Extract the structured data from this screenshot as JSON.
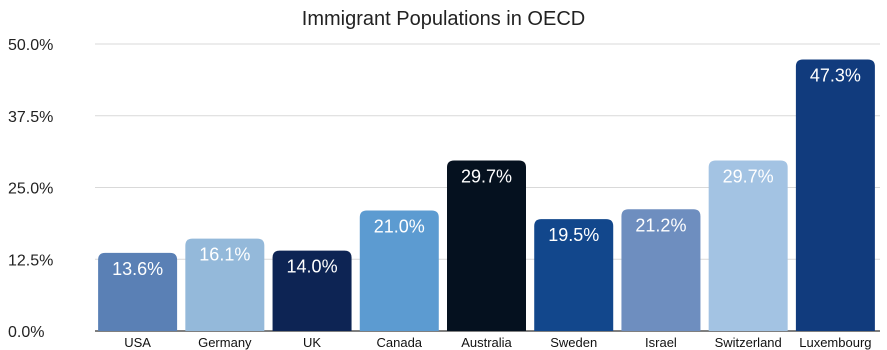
{
  "chart_data": {
    "type": "bar",
    "title": "Immigrant Populations in OECD",
    "xlabel": "",
    "ylabel": "",
    "ylim": [
      0,
      50
    ],
    "yticks": [
      "0.0%",
      "12.5%",
      "25.0%",
      "37.5%",
      "50.0%"
    ],
    "ytick_values": [
      0,
      12.5,
      25,
      37.5,
      50
    ],
    "grid": true,
    "legend": "none",
    "categories": [
      "USA",
      "Germany",
      "UK",
      "Canada",
      "Australia",
      "Sweden",
      "Israel",
      "Switzerland",
      "Luxembourg"
    ],
    "values": [
      13.6,
      16.1,
      14.0,
      21.0,
      29.7,
      19.5,
      21.2,
      29.7,
      47.3
    ],
    "data_labels": [
      "13.6%",
      "16.1%",
      "14.0%",
      "21.0%",
      "29.7%",
      "19.5%",
      "21.2%",
      "29.7%",
      "47.3%"
    ],
    "colors": [
      "#5a80b5",
      "#94b9da",
      "#0d2454",
      "#5c9bd1",
      "#05111f",
      "#12478c",
      "#6e8ebf",
      "#a3c3e3",
      "#113b7d"
    ]
  }
}
